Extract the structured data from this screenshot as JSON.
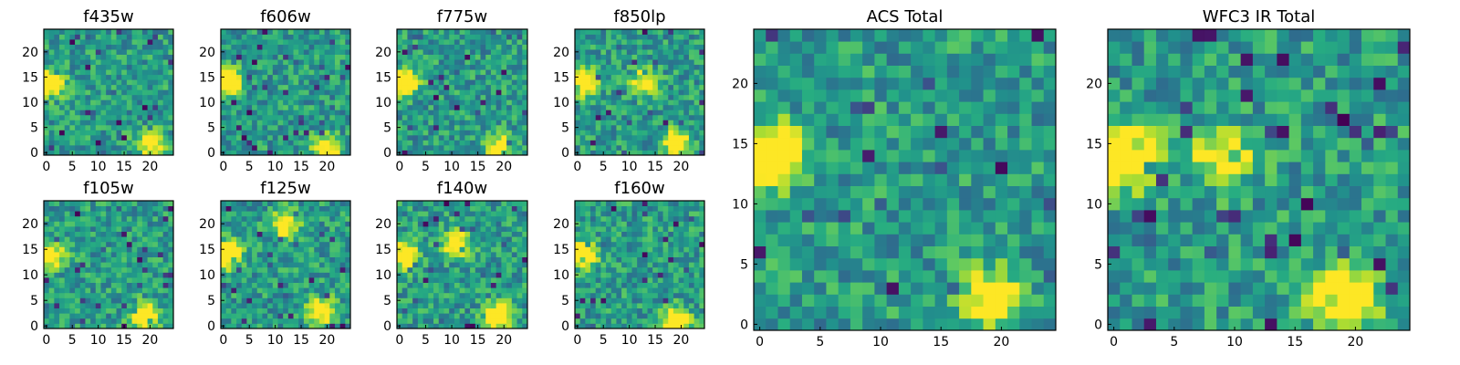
{
  "figure": {
    "colormap": "viridis",
    "colors": {
      "low": "#440154",
      "mid": "#21918c",
      "high": "#fde725",
      "frame": "#000000"
    }
  },
  "chart_data": [
    {
      "type": "heatmap",
      "title": "f435w",
      "grid": [
        25,
        25
      ],
      "xlim": [
        0,
        24
      ],
      "ylim": [
        0,
        24
      ],
      "xticks": [
        0,
        5,
        10,
        15,
        20
      ],
      "yticks": [
        0,
        5,
        10,
        15,
        20
      ],
      "hot_spots": [
        {
          "x": 1,
          "y": 14,
          "v": 0.85
        },
        {
          "x": 20,
          "y": 2,
          "v": 0.7
        }
      ],
      "seed": 11
    },
    {
      "type": "heatmap",
      "title": "f606w",
      "grid": [
        25,
        25
      ],
      "xlim": [
        0,
        24
      ],
      "ylim": [
        0,
        24
      ],
      "xticks": [
        0,
        5,
        10,
        15,
        20
      ],
      "yticks": [
        0,
        5,
        10,
        15,
        20
      ],
      "hot_spots": [
        {
          "x": 1,
          "y": 14,
          "v": 0.8
        },
        {
          "x": 20,
          "y": 1,
          "v": 0.7
        }
      ],
      "seed": 23
    },
    {
      "type": "heatmap",
      "title": "f775w",
      "grid": [
        25,
        25
      ],
      "xlim": [
        0,
        24
      ],
      "ylim": [
        0,
        24
      ],
      "xticks": [
        0,
        5,
        10,
        15,
        20
      ],
      "yticks": [
        0,
        5,
        10,
        15,
        20
      ],
      "hot_spots": [
        {
          "x": 1,
          "y": 14,
          "v": 0.85
        },
        {
          "x": 19,
          "y": 1,
          "v": 0.75
        }
      ],
      "seed": 37
    },
    {
      "type": "heatmap",
      "title": "f850lp",
      "grid": [
        25,
        25
      ],
      "xlim": [
        0,
        24
      ],
      "ylim": [
        0,
        24
      ],
      "xticks": [
        0,
        5,
        10,
        15,
        20
      ],
      "yticks": [
        0,
        5,
        10,
        15,
        20
      ],
      "hot_spots": [
        {
          "x": 1,
          "y": 14,
          "v": 0.85
        },
        {
          "x": 19,
          "y": 2,
          "v": 0.75
        },
        {
          "x": 13,
          "y": 14,
          "v": 0.6
        }
      ],
      "seed": 41
    },
    {
      "type": "heatmap",
      "title": "ACS Total",
      "grid": [
        25,
        25
      ],
      "xlim": [
        0,
        24
      ],
      "ylim": [
        0,
        24
      ],
      "xticks": [
        0,
        5,
        10,
        15,
        20
      ],
      "yticks": [
        0,
        5,
        10,
        15,
        20
      ],
      "hot_spots": [
        {
          "x": 1,
          "y": 14,
          "v": 0.95
        },
        {
          "x": 19,
          "y": 2,
          "v": 0.65
        }
      ],
      "seed": 53
    },
    {
      "type": "heatmap",
      "title": "WFC3 IR Total",
      "grid": [
        25,
        25
      ],
      "xlim": [
        0,
        24
      ],
      "ylim": [
        0,
        24
      ],
      "xticks": [
        0,
        5,
        10,
        15,
        20
      ],
      "yticks": [
        0,
        5,
        10,
        15,
        20
      ],
      "hot_spots": [
        {
          "x": 1,
          "y": 14,
          "v": 0.95
        },
        {
          "x": 19,
          "y": 2,
          "v": 0.9
        },
        {
          "x": 9,
          "y": 14,
          "v": 0.55
        }
      ],
      "seed": 67
    },
    {
      "type": "heatmap",
      "title": "f105w",
      "grid": [
        25,
        25
      ],
      "xlim": [
        0,
        24
      ],
      "ylim": [
        0,
        24
      ],
      "xticks": [
        0,
        5,
        10,
        15,
        20
      ],
      "yticks": [
        0,
        5,
        10,
        15,
        20
      ],
      "hot_spots": [
        {
          "x": 1,
          "y": 14,
          "v": 0.8
        },
        {
          "x": 19,
          "y": 2,
          "v": 0.8
        }
      ],
      "seed": 71
    },
    {
      "type": "heatmap",
      "title": "f125w",
      "grid": [
        25,
        25
      ],
      "xlim": [
        0,
        24
      ],
      "ylim": [
        0,
        24
      ],
      "xticks": [
        0,
        5,
        10,
        15,
        20
      ],
      "yticks": [
        0,
        5,
        10,
        15,
        20
      ],
      "hot_spots": [
        {
          "x": 1,
          "y": 14,
          "v": 0.85
        },
        {
          "x": 12,
          "y": 20,
          "v": 0.65
        },
        {
          "x": 19,
          "y": 3,
          "v": 0.75
        }
      ],
      "seed": 83
    },
    {
      "type": "heatmap",
      "title": "f140w",
      "grid": [
        25,
        25
      ],
      "xlim": [
        0,
        24
      ],
      "ylim": [
        0,
        24
      ],
      "xticks": [
        0,
        5,
        10,
        15,
        20
      ],
      "yticks": [
        0,
        5,
        10,
        15,
        20
      ],
      "hot_spots": [
        {
          "x": 1,
          "y": 14,
          "v": 0.8
        },
        {
          "x": 19,
          "y": 2,
          "v": 0.85
        },
        {
          "x": 11,
          "y": 16,
          "v": 0.6
        }
      ],
      "seed": 97
    },
    {
      "type": "heatmap",
      "title": "f160w",
      "grid": [
        25,
        25
      ],
      "xlim": [
        0,
        24
      ],
      "ylim": [
        0,
        24
      ],
      "xticks": [
        0,
        5,
        10,
        15,
        20
      ],
      "yticks": [
        0,
        5,
        10,
        15,
        20
      ],
      "hot_spots": [
        {
          "x": 1,
          "y": 14,
          "v": 0.85
        },
        {
          "x": 19,
          "y": 1,
          "v": 0.9
        }
      ],
      "seed": 103
    }
  ]
}
